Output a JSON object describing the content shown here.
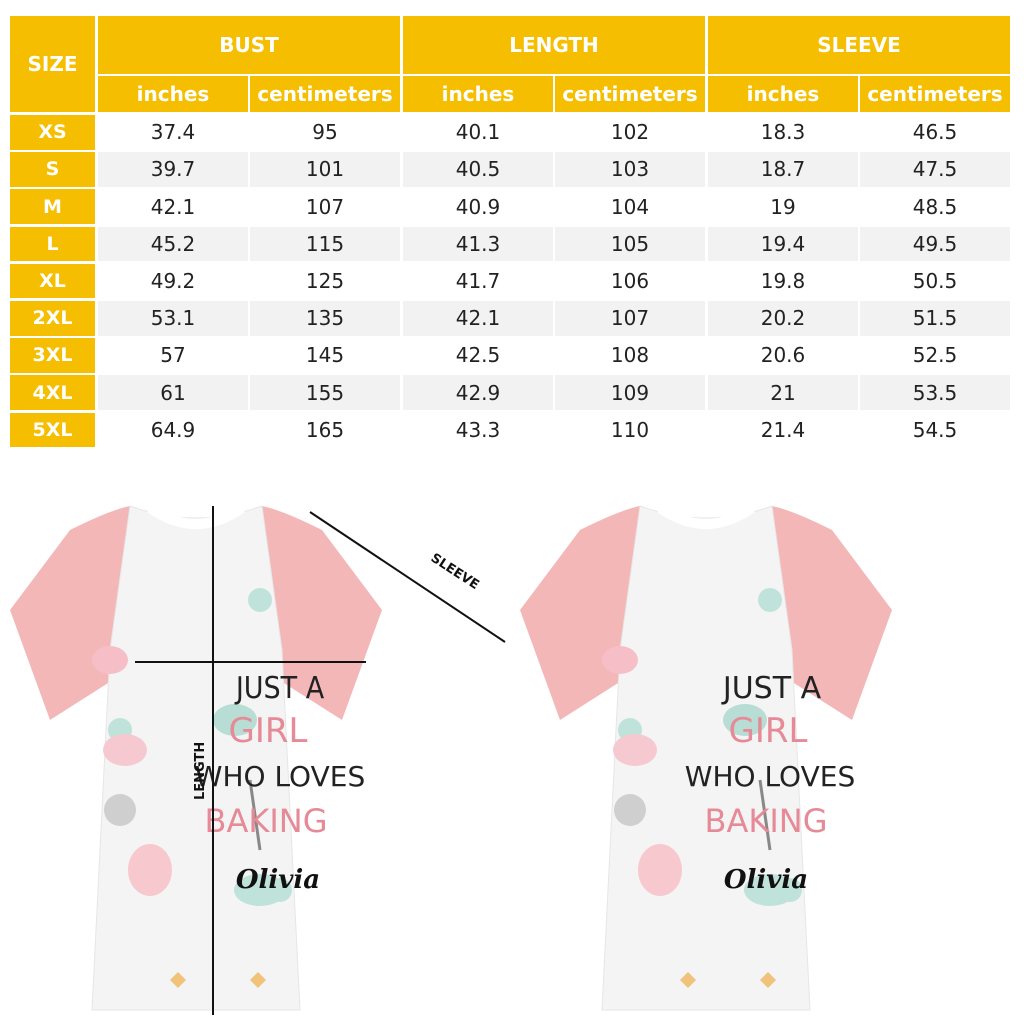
{
  "table": {
    "size_label": "SIZE",
    "groups": [
      "BUST",
      "LENGTH",
      "SLEEVE"
    ],
    "units": [
      "inches",
      "centimeters",
      "inches",
      "centimeters",
      "inches",
      "centimeters"
    ],
    "rows": [
      {
        "size": "XS",
        "values": [
          "37.4",
          "95",
          "40.1",
          "102",
          "18.3",
          "46.5"
        ]
      },
      {
        "size": "S",
        "values": [
          "39.7",
          "101",
          "40.5",
          "103",
          "18.7",
          "47.5"
        ]
      },
      {
        "size": "M",
        "values": [
          "42.1",
          "107",
          "40.9",
          "104",
          "19",
          "48.5"
        ]
      },
      {
        "size": "L",
        "values": [
          "45.2",
          "115",
          "41.3",
          "105",
          "19.4",
          "49.5"
        ]
      },
      {
        "size": "XL",
        "values": [
          "49.2",
          "125",
          "41.7",
          "106",
          "19.8",
          "50.5"
        ]
      },
      {
        "size": "2XL",
        "values": [
          "53.1",
          "135",
          "42.1",
          "107",
          "20.2",
          "51.5"
        ]
      },
      {
        "size": "3XL",
        "values": [
          "57",
          "145",
          "42.5",
          "108",
          "20.6",
          "52.5"
        ]
      },
      {
        "size": "4XL",
        "values": [
          "61",
          "155",
          "42.9",
          "109",
          "21",
          "53.5"
        ]
      },
      {
        "size": "5XL",
        "values": [
          "64.9",
          "165",
          "43.3",
          "110",
          "21.4",
          "54.5"
        ]
      }
    ]
  },
  "shirt": {
    "design_lines": [
      "JUST A",
      "GIRL",
      "WHO LOVES",
      "BAKING"
    ],
    "name": "Olivia",
    "measure_labels": {
      "sleeve": "SLEEVE",
      "length": "LENGTH"
    }
  },
  "colors": {
    "header": "#F5BE00",
    "sleeve": "#F4B7B8",
    "alt_row": "#f2f2f2",
    "pink_text": "#E58A96"
  }
}
